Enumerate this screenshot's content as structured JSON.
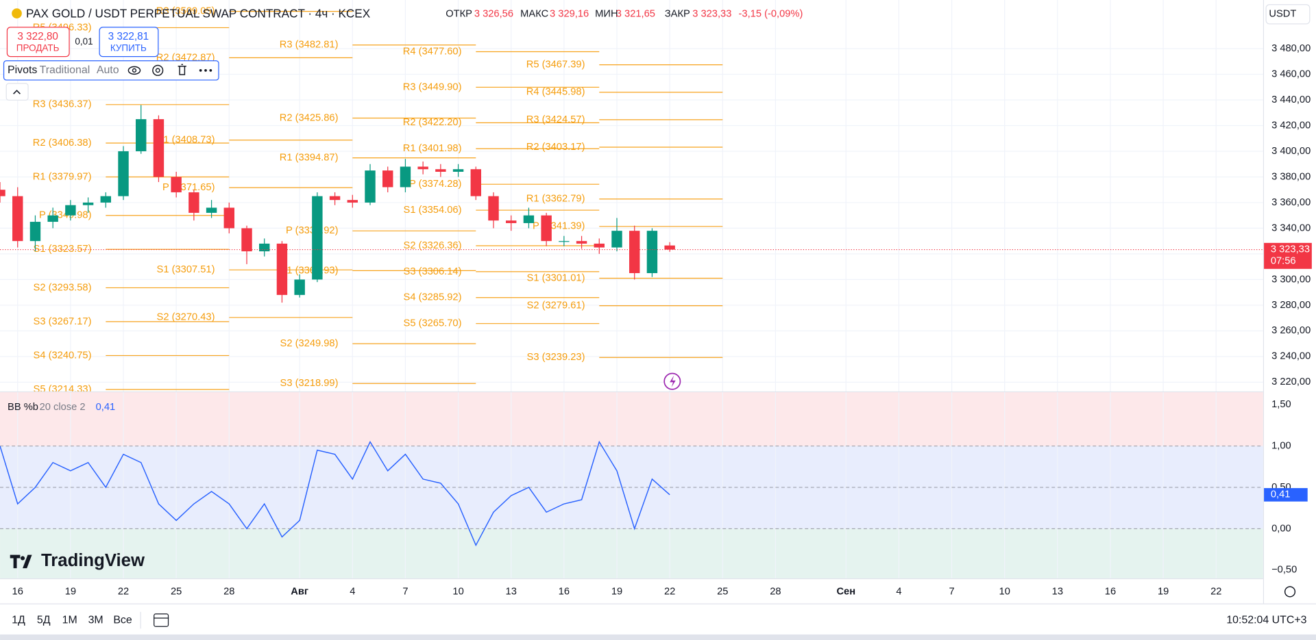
{
  "header": {
    "symbol": "PAX GOLD / USDT PERPETUAL SWAP CONTRACT · 4ч · KCEX",
    "open_label": "ОТКР",
    "open": "3 326,56",
    "high_label": "МАКС",
    "high": "3 329,16",
    "low_label": "МИН",
    "low": "3 321,65",
    "close_label": "ЗАКР",
    "close": "3 323,33",
    "change": "-3,15 (-0,09%)",
    "currency": "USDT"
  },
  "trade": {
    "sell_price": "3 322,80",
    "sell": "ПРОДАТЬ",
    "spread": "0,01",
    "buy_price": "3 322,81",
    "buy": "КУПИТЬ"
  },
  "indicator": {
    "name": "Pivots",
    "type": "Traditional",
    "timeframe": "Auto"
  },
  "toolbar": {
    "ranges": [
      "1Д",
      "5Д",
      "1М",
      "3М",
      "Все"
    ],
    "clock": "10:52:04 UTC+3"
  },
  "logo": "TradingView",
  "chart_data": [
    {
      "type": "candlestick",
      "x": [
        -1,
        0,
        1,
        2,
        3,
        4,
        5,
        6,
        7,
        8,
        9,
        10,
        11,
        12,
        13,
        14,
        15,
        16,
        17,
        18,
        19,
        20,
        21,
        22,
        23,
        24,
        25,
        26,
        27,
        28,
        29,
        30,
        31,
        32,
        33,
        34,
        35,
        36,
        37
      ],
      "open": [
        3370,
        3365,
        3330,
        3345,
        3350,
        3358,
        3360,
        3365,
        3400,
        3425,
        3380,
        3368,
        3352,
        3356,
        3340,
        3322,
        3328,
        3288,
        3300,
        3365,
        3362,
        3360,
        3385,
        3372,
        3388,
        3386,
        3384,
        3386,
        3365,
        3346,
        3344,
        3350,
        3330,
        3330,
        3328,
        3325,
        3338,
        3305,
        3326.56
      ],
      "high": [
        3376,
        3372,
        3350,
        3356,
        3362,
        3364,
        3368,
        3404,
        3436,
        3428,
        3384,
        3370,
        3362,
        3360,
        3342,
        3332,
        3330,
        3304,
        3368,
        3368,
        3366,
        3390,
        3388,
        3394,
        3392,
        3390,
        3390,
        3388,
        3368,
        3350,
        3356,
        3352,
        3334,
        3334,
        3332,
        3348,
        3342,
        3340,
        3329.16
      ],
      "low": [
        3360,
        3325,
        3322,
        3340,
        3346,
        3352,
        3356,
        3362,
        3398,
        3376,
        3364,
        3346,
        3348,
        3336,
        3312,
        3318,
        3282,
        3286,
        3298,
        3358,
        3356,
        3358,
        3368,
        3368,
        3382,
        3380,
        3380,
        3362,
        3340,
        3338,
        3340,
        3326,
        3326,
        3324,
        3320,
        3322,
        3300,
        3302,
        3321.65
      ],
      "close": [
        3365,
        3330,
        3345,
        3350,
        3358,
        3360,
        3365,
        3400,
        3425,
        3380,
        3368,
        3352,
        3356,
        3340,
        3322,
        3328,
        3288,
        3300,
        3365,
        3362,
        3360,
        3385,
        3372,
        3388,
        3386,
        3384,
        3386,
        3365,
        3346,
        3344,
        3350,
        3330,
        3330,
        3328,
        3325,
        3338,
        3305,
        3338,
        3323.33
      ],
      "up_color": "#089981",
      "down_color": "#f23645",
      "grid": true,
      "xlim": [
        -1,
        70.667
      ],
      "xticks": [
        {
          "value": 0,
          "label": "16"
        },
        {
          "value": 3,
          "label": "19"
        },
        {
          "value": 6,
          "label": "22"
        },
        {
          "value": 9,
          "label": "25"
        },
        {
          "value": 12,
          "label": "28"
        },
        {
          "value": 16,
          "label": "Авг"
        },
        {
          "value": 19,
          "label": "4"
        },
        {
          "value": 22,
          "label": "7"
        },
        {
          "value": 25,
          "label": "10"
        },
        {
          "value": 28,
          "label": "13"
        },
        {
          "value": 31,
          "label": "16"
        },
        {
          "value": 34,
          "label": "19"
        },
        {
          "value": 37,
          "label": "22"
        },
        {
          "value": 40,
          "label": "25"
        },
        {
          "value": 43,
          "label": "28"
        },
        {
          "value": 47,
          "label": "Сен"
        },
        {
          "value": 50,
          "label": "4"
        },
        {
          "value": 53,
          "label": "7"
        },
        {
          "value": 56,
          "label": "10"
        },
        {
          "value": 59,
          "label": "13"
        },
        {
          "value": 62,
          "label": "16"
        },
        {
          "value": 65,
          "label": "19"
        },
        {
          "value": 68,
          "label": "22"
        }
      ],
      "ylim": [
        3212.8,
        3517.9
      ],
      "yticks": [
        {
          "value": 3220,
          "label": "3 220,00"
        },
        {
          "value": 3240,
          "label": "3 240,00"
        },
        {
          "value": 3260,
          "label": "3 260,00"
        },
        {
          "value": 3280,
          "label": "3 280,00"
        },
        {
          "value": 3300,
          "label": "3 300,00"
        },
        {
          "value": 3320,
          "label": "3 320,00"
        },
        {
          "value": 3340,
          "label": "3 340,00"
        },
        {
          "value": 3360,
          "label": "3 360,00"
        },
        {
          "value": 3380,
          "label": "3 380,00"
        },
        {
          "value": 3400,
          "label": "3 400,00"
        },
        {
          "value": 3420,
          "label": "3 420,00"
        },
        {
          "value": 3440,
          "label": "3 440,00"
        },
        {
          "value": 3460,
          "label": "3 460,00"
        },
        {
          "value": 3480,
          "label": "3 480,00"
        }
      ],
      "last_label": "3 323,33",
      "countdown": "07:56",
      "pivots": {
        "color": "#f7a21b",
        "periods": [
          {
            "start": 5,
            "end": 12,
            "levels": [
              {
                "label": "R5 (3496.33)",
                "value": 3496.33
              },
              {
                "label": "R3 (3436.37)",
                "value": 3436.37
              },
              {
                "label": "R2 (3406.38)",
                "value": 3406.38
              },
              {
                "label": "R1 (3379.97)",
                "value": 3379.97
              },
              {
                "label": "P (3349.98)",
                "value": 3349.98
              },
              {
                "label": "S1 (3323.57)",
                "value": 3323.57
              },
              {
                "label": "S2 (3293.58)",
                "value": 3293.58
              },
              {
                "label": "S3 (3267.17)",
                "value": 3267.17
              },
              {
                "label": "S4 (3240.75)",
                "value": 3240.75
              },
              {
                "label": "S5 (3214.33)",
                "value": 3214.33
              }
            ]
          },
          {
            "start": 12,
            "end": 19,
            "levels": [
              {
                "label": "R3 (3509.05)",
                "value": 3509.05
              },
              {
                "label": "R2 (3472.87)",
                "value": 3472.87
              },
              {
                "label": "R1 (3408.73)",
                "value": 3408.73
              },
              {
                "label": "P (3371.65)",
                "value": 3371.65
              },
              {
                "label": "S1 (3307.51)",
                "value": 3307.51
              },
              {
                "label": "S2 (3270.43)",
                "value": 3270.43
              }
            ]
          },
          {
            "start": 19,
            "end": 26,
            "levels": [
              {
                "label": "R3 (3482.81)",
                "value": 3482.81
              },
              {
                "label": "R2 (3425.86)",
                "value": 3425.86
              },
              {
                "label": "R1 (3394.87)",
                "value": 3394.87
              },
              {
                "label": "P (3337.92)",
                "value": 3337.92
              },
              {
                "label": "S1 (3306.93)",
                "value": 3306.93
              },
              {
                "label": "S2 (3249.98)",
                "value": 3249.98
              },
              {
                "label": "S3 (3218.99)",
                "value": 3218.99
              }
            ]
          },
          {
            "start": 26,
            "end": 33,
            "levels": [
              {
                "label": "R4 (3477.60)",
                "value": 3477.6
              },
              {
                "label": "R3 (3449.90)",
                "value": 3449.9
              },
              {
                "label": "R2 (3422.20)",
                "value": 3422.2
              },
              {
                "label": "R1 (3401.98)",
                "value": 3401.98
              },
              {
                "label": "P (3374.28)",
                "value": 3374.28
              },
              {
                "label": "S1 (3354.06)",
                "value": 3354.06
              },
              {
                "label": "S2 (3326.36)",
                "value": 3326.36
              },
              {
                "label": "S3 (3306.14)",
                "value": 3306.14
              },
              {
                "label": "S4 (3285.92)",
                "value": 3285.92
              },
              {
                "label": "S5 (3265.70)",
                "value": 3265.7
              }
            ]
          },
          {
            "start": 33,
            "end": 40,
            "levels": [
              {
                "label": "R5 (3467.39)",
                "value": 3467.39
              },
              {
                "label": "R4 (3445.98)",
                "value": 3445.98
              },
              {
                "label": "R3 (3424.57)",
                "value": 3424.57
              },
              {
                "label": "R2 (3403.17)",
                "value": 3403.17
              },
              {
                "label": "R1 (3362.79)",
                "value": 3362.79
              },
              {
                "label": "P (3341.39)",
                "value": 3341.39
              },
              {
                "label": "S1 (3301.01)",
                "value": 3301.01
              },
              {
                "label": "S2 (3279.61)",
                "value": 3279.61
              },
              {
                "label": "S3 (3239.23)",
                "value": 3239.23
              }
            ]
          }
        ]
      }
    },
    {
      "type": "line",
      "name": "BB %b",
      "settings": "20 close 2",
      "color": "#2962ff",
      "x": [
        -1,
        0,
        1,
        2,
        3,
        4,
        5,
        6,
        7,
        8,
        9,
        10,
        11,
        12,
        13,
        14,
        15,
        16,
        17,
        18,
        19,
        20,
        21,
        22,
        23,
        24,
        25,
        26,
        27,
        28,
        29,
        30,
        31,
        32,
        33,
        34,
        35,
        36,
        37
      ],
      "values": [
        1.0,
        0.3,
        0.5,
        0.8,
        0.7,
        0.8,
        0.5,
        0.9,
        0.8,
        0.3,
        0.1,
        0.3,
        0.45,
        0.3,
        0.0,
        0.3,
        -0.1,
        0.1,
        0.95,
        0.9,
        0.6,
        1.05,
        0.7,
        0.9,
        0.6,
        0.55,
        0.3,
        -0.2,
        0.2,
        0.4,
        0.5,
        0.2,
        0.3,
        0.35,
        1.05,
        0.7,
        0.0,
        0.6,
        0.41
      ],
      "legend_value": "0,41",
      "band_upper": 1,
      "band_middle": 0.5,
      "band_lower": 0,
      "ylim": [
        -0.6,
        1.65
      ],
      "yticks": [
        {
          "value": -0.5,
          "label": "−0,50"
        },
        {
          "value": 0,
          "label": "0,00"
        },
        {
          "value": 0.5,
          "label": "0,50"
        },
        {
          "value": 1,
          "label": "1,00"
        },
        {
          "value": 1.5,
          "label": "1,50"
        }
      ]
    }
  ]
}
